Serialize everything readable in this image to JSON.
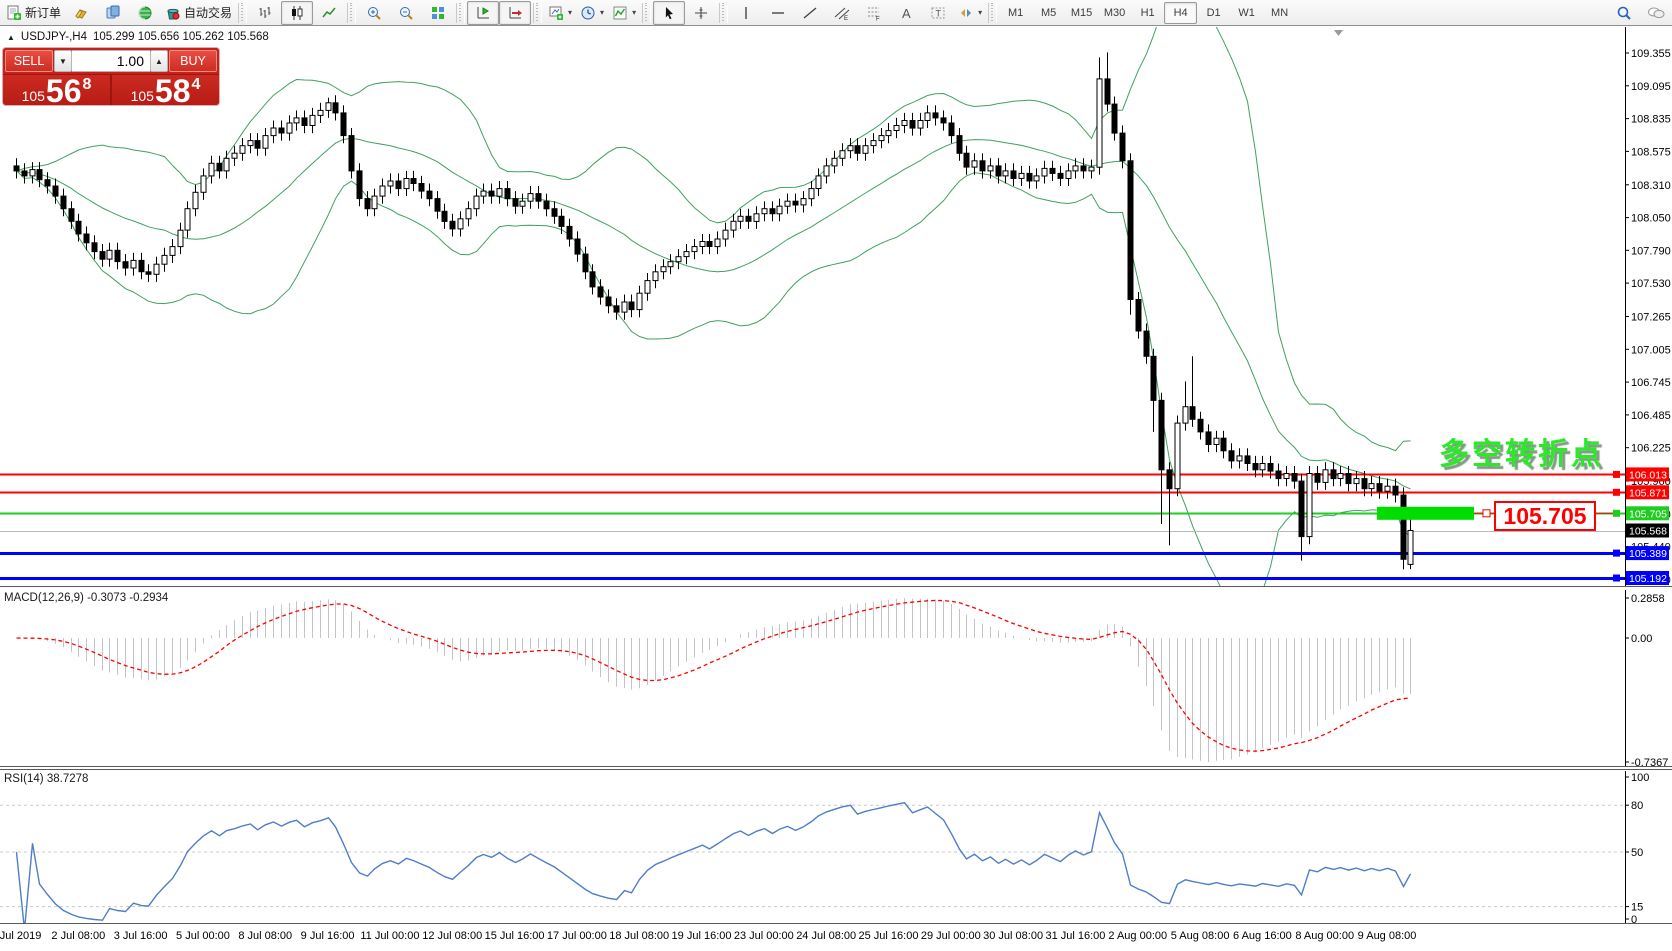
{
  "header": {
    "symbol": "USDJPY-,H4",
    "ohlc": "105.299 105.656 105.262 105.568"
  },
  "one_click": {
    "sell_label": "SELL",
    "buy_label": "BUY",
    "volume": "1.00",
    "sell_price_small": "105",
    "sell_price_big": "56",
    "sell_price_sup": "8",
    "buy_price_small": "105",
    "buy_price_big": "58",
    "buy_price_sup": "4"
  },
  "annotation": {
    "text": "多空转折点",
    "color": "#2be82b"
  },
  "callout": {
    "text": "105.705",
    "color": "#ff0000"
  },
  "toolbar": {
    "buttons": [
      {
        "type": "button",
        "name": "new-order-button",
        "icon": "new-order",
        "label": "新订单"
      },
      {
        "type": "button",
        "name": "metaeditor-button",
        "icon": "gold"
      },
      {
        "type": "button",
        "name": "profiles-button",
        "icon": "blue-doc"
      },
      {
        "type": "button",
        "name": "news-button",
        "icon": "green-globe"
      },
      {
        "type": "button",
        "name": "autotrading-button",
        "icon": "autotrade",
        "label": "自动交易"
      },
      {
        "type": "sep"
      },
      {
        "type": "button",
        "name": "bar-chart-button",
        "icon": "bars"
      },
      {
        "type": "button",
        "name": "candlestick-chart-button",
        "icon": "candles",
        "active": true
      },
      {
        "type": "button",
        "name": "line-chart-button",
        "icon": "line"
      },
      {
        "type": "sep"
      },
      {
        "type": "button",
        "name": "zoom-in-button",
        "icon": "zoom-in"
      },
      {
        "type": "button",
        "name": "zoom-out-button",
        "icon": "zoom-out"
      },
      {
        "type": "button",
        "name": "tile-windows-button",
        "icon": "tiles"
      },
      {
        "type": "sep"
      },
      {
        "type": "button",
        "name": "chart-shift-button",
        "icon": "shift",
        "active": true
      },
      {
        "type": "button",
        "name": "auto-scroll-button",
        "icon": "autoscroll",
        "active": true
      },
      {
        "type": "sep"
      },
      {
        "type": "dropdown",
        "name": "new-chart-dropdown",
        "icon": "new-chart"
      },
      {
        "type": "dropdown",
        "name": "periods-dropdown",
        "icon": "clock"
      },
      {
        "type": "dropdown",
        "name": "indicators-dropdown",
        "icon": "indicator"
      },
      {
        "type": "sep"
      },
      {
        "type": "button",
        "name": "cursor-button",
        "icon": "cursor",
        "active": true
      },
      {
        "type": "button",
        "name": "crosshair-button",
        "icon": "crosshair"
      },
      {
        "type": "sep"
      },
      {
        "type": "button",
        "name": "vertical-line-button",
        "icon": "vline"
      },
      {
        "type": "button",
        "name": "horizontal-line-button",
        "icon": "hline"
      },
      {
        "type": "button",
        "name": "trendline-button",
        "icon": "trend"
      },
      {
        "type": "button",
        "name": "channel-button",
        "icon": "channel"
      },
      {
        "type": "button",
        "name": "fibonacci-button",
        "icon": "fibo"
      },
      {
        "type": "button",
        "name": "text-button",
        "icon": "textA"
      },
      {
        "type": "button",
        "name": "label-button",
        "icon": "textT"
      },
      {
        "type": "dropdown",
        "name": "shapes-dropdown",
        "icon": "shapes"
      },
      {
        "type": "sep"
      }
    ],
    "timeframes": [
      "M1",
      "M5",
      "M15",
      "M30",
      "H1",
      "H4",
      "D1",
      "W1",
      "MN"
    ],
    "active_timeframe": "H4",
    "right_buttons": [
      {
        "type": "button",
        "name": "search-button",
        "icon": "search"
      },
      {
        "type": "button",
        "name": "chat-button",
        "icon": "chat"
      }
    ]
  },
  "price_axis": {
    "ticks": [
      "109.355",
      "109.095",
      "108.835",
      "108.575",
      "108.310",
      "108.050",
      "107.790",
      "107.530",
      "107.265",
      "107.005",
      "106.745",
      "106.485",
      "106.225",
      "105.960",
      "105.700",
      "105.440",
      "105.180"
    ]
  },
  "lines": [
    {
      "price": 106.013,
      "label": "106.013",
      "color": "#ff0000",
      "width": 2,
      "handle": true
    },
    {
      "price": 105.871,
      "label": "105.871",
      "color": "#ff0000",
      "width": 2,
      "handle": true
    },
    {
      "price": 105.705,
      "label": "105.705",
      "color": "#1fcc1f",
      "width": 2,
      "handle": true,
      "highlight": true
    },
    {
      "price": 105.568,
      "label": "105.568",
      "color": "#b8b8b8",
      "width": 1,
      "tag_bg": "#000000"
    },
    {
      "price": 105.389,
      "label": "105.389",
      "color": "#0000ff",
      "width": 3,
      "handle": true
    },
    {
      "price": 105.192,
      "label": "105.192",
      "color": "#0000ff",
      "width": 3,
      "handle": true
    }
  ],
  "time_axis": {
    "labels": [
      "1 Jul 2019",
      "2 Jul 08:00",
      "3 Jul 16:00",
      "5 Jul 00:00",
      "8 Jul 08:00",
      "9 Jul 16:00",
      "11 Jul 00:00",
      "12 Jul 08:00",
      "15 Jul 16:00",
      "17 Jul 00:00",
      "18 Jul 08:00",
      "19 Jul 16:00",
      "23 Jul 00:00",
      "24 Jul 08:00",
      "25 Jul 16:00",
      "29 Jul 00:00",
      "30 Jul 08:00",
      "31 Jul 16:00",
      "2 Aug 00:00",
      "5 Aug 08:00",
      "6 Aug 16:00",
      "8 Aug 00:00",
      "9 Aug 08:00"
    ]
  },
  "indicators": {
    "macd": {
      "label": "MACD(12,26,9)",
      "values": "-0.3073 -0.2934",
      "fast": 12,
      "slow": 26,
      "signal": 9,
      "axis_labels": [
        "0.2858",
        "0.00",
        "-0.7367"
      ],
      "hist_color": "#c4c4c4",
      "signal_color": "#ff0000"
    },
    "rsi": {
      "label": "RSI(14)",
      "value": "38.7278",
      "period": 14,
      "levels": [
        80,
        50,
        15
      ],
      "axis_labels": [
        "100",
        "80",
        "50",
        "15",
        "0"
      ],
      "color": "#4f7dc8"
    }
  },
  "chart_data": {
    "type": "candlestick",
    "symbol": "USDJPY",
    "timeframe": "H4",
    "price_range": [
      105.13,
      109.53
    ],
    "bars_per_time_label": 8,
    "first_open": 108.46,
    "closes": [
      108.42,
      108.38,
      108.43,
      108.35,
      108.3,
      108.22,
      108.12,
      108.02,
      107.92,
      107.85,
      107.78,
      107.72,
      107.79,
      107.7,
      107.65,
      107.71,
      107.62,
      107.6,
      107.68,
      107.75,
      107.82,
      107.95,
      108.12,
      108.25,
      108.38,
      108.48,
      108.42,
      108.52,
      108.56,
      108.62,
      108.66,
      108.6,
      108.7,
      108.76,
      108.72,
      108.8,
      108.84,
      108.78,
      108.86,
      108.9,
      108.96,
      108.88,
      108.7,
      108.42,
      108.2,
      108.12,
      108.22,
      108.3,
      108.34,
      108.28,
      108.36,
      108.32,
      108.26,
      108.2,
      108.1,
      108.02,
      107.96,
      108.04,
      108.12,
      108.22,
      108.26,
      108.22,
      108.28,
      108.2,
      108.14,
      108.18,
      108.24,
      108.18,
      108.12,
      108.06,
      107.98,
      107.88,
      107.76,
      107.62,
      107.5,
      107.42,
      107.35,
      107.3,
      107.38,
      107.32,
      107.45,
      107.55,
      107.62,
      107.66,
      107.7,
      107.74,
      107.78,
      107.82,
      107.86,
      107.82,
      107.88,
      107.95,
      108.02,
      108.06,
      108.02,
      108.08,
      108.12,
      108.08,
      108.14,
      108.18,
      108.15,
      108.2,
      108.28,
      108.38,
      108.46,
      108.52,
      108.58,
      108.62,
      108.56,
      108.62,
      108.66,
      108.7,
      108.74,
      108.78,
      108.82,
      108.76,
      108.82,
      108.88,
      108.84,
      108.8,
      108.7,
      108.56,
      108.45,
      108.5,
      108.42,
      108.46,
      108.38,
      108.42,
      108.36,
      108.4,
      108.34,
      108.38,
      108.44,
      108.4,
      108.36,
      108.42,
      108.46,
      108.42,
      108.45,
      109.15,
      108.95,
      108.72,
      108.5,
      107.4,
      107.15,
      106.95,
      106.6,
      106.05,
      105.9,
      106.42,
      106.55,
      106.45,
      106.35,
      106.25,
      106.3,
      106.2,
      106.12,
      106.16,
      106.1,
      106.05,
      106.1,
      106.04,
      105.98,
      106.02,
      105.96,
      105.52,
      106.02,
      105.95,
      106.05,
      105.98,
      106.02,
      105.94,
      105.98,
      105.9,
      105.94,
      105.88,
      105.92,
      105.85,
      105.34,
      105.568
    ],
    "overrides": {
      "40": {
        "h": 109.0
      },
      "77": {
        "l": 107.24
      },
      "139": {
        "h": 109.32
      },
      "140": {
        "h": 109.36
      },
      "143": {
        "l": 107.28
      },
      "146": {
        "l": 106.35
      },
      "147": {
        "l": 105.62
      },
      "148": {
        "l": 105.45
      },
      "150": {
        "h": 106.75
      },
      "151": {
        "h": 106.95
      },
      "165": {
        "l": 105.33
      },
      "178": {
        "l": 105.26
      },
      "179": {
        "o": 105.299,
        "h": 105.656,
        "l": 105.262,
        "c": 105.568
      }
    },
    "bollinger": {
      "period": 20,
      "deviation": 2,
      "color": "#3fa161"
    },
    "up_color": "#ffffff",
    "down_color": "#000000"
  }
}
